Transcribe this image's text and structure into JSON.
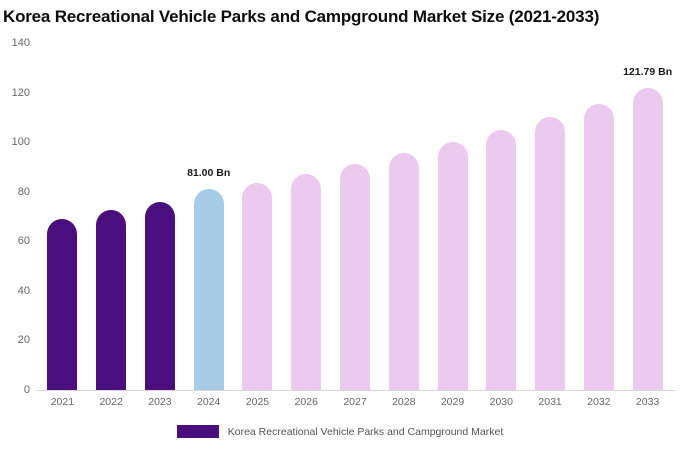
{
  "title": "Korea Recreational Vehicle Parks and Campground Market Size (2021-2033)",
  "legend": {
    "label": "Korea Recreational Vehicle Parks and Campground Market",
    "swatch_color": "#4a0e7f"
  },
  "chart_data": {
    "type": "bar",
    "title": "Korea Recreational Vehicle Parks and Campground Market Size (2021-2033)",
    "categories": [
      "2021",
      "2022",
      "2023",
      "2024",
      "2025",
      "2026",
      "2027",
      "2028",
      "2029",
      "2030",
      "2031",
      "2032",
      "2033"
    ],
    "values": [
      69,
      72.5,
      76,
      81,
      83.5,
      87,
      91,
      95.5,
      100,
      105,
      110,
      115.5,
      121.79
    ],
    "unit": "Bn",
    "xlabel": "",
    "ylabel": "",
    "ylim": [
      0,
      140
    ],
    "yticks": [
      0,
      20,
      40,
      60,
      80,
      100,
      120,
      140
    ],
    "grid": false,
    "legend_position": "bottom",
    "colors": {
      "historical": "#4a0e7f",
      "highlight": "#a6cde5",
      "forecast": "#ecc9ee"
    },
    "bar_colors": [
      "#4a0e7f",
      "#4a0e7f",
      "#4a0e7f",
      "#a6cde5",
      "#ecc9ee",
      "#ecc9ee",
      "#ecc9ee",
      "#ecc9ee",
      "#ecc9ee",
      "#ecc9ee",
      "#ecc9ee",
      "#ecc9ee",
      "#ecc9ee"
    ],
    "annotations": [
      {
        "category": "2024",
        "text": "81.00 Bn"
      },
      {
        "category": "2033",
        "text": "121.79 Bn"
      }
    ]
  }
}
